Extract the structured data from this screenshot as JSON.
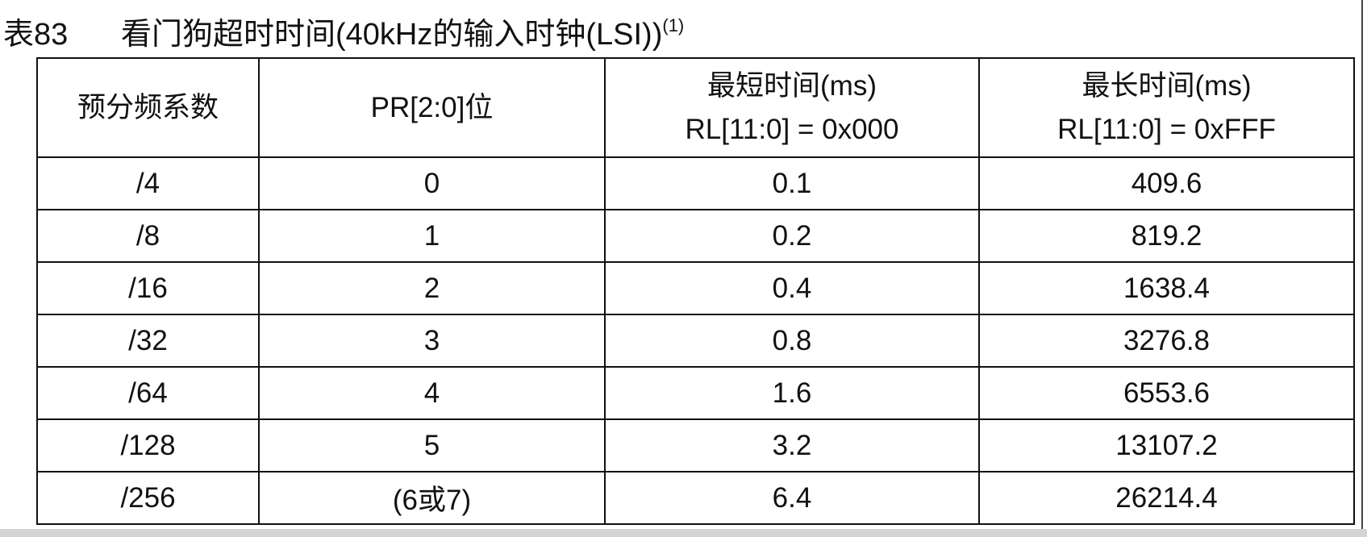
{
  "caption": {
    "number": "表83",
    "text": "看门狗超时时间(40kHz的输入时钟(LSI))",
    "footnote": "(1)"
  },
  "table": {
    "header": [
      [
        "预分频系数"
      ],
      [
        "PR[2:0]位"
      ],
      [
        "最短时间(ms)",
        "RL[11:0] = 0x000"
      ],
      [
        "最长时间(ms)",
        "RL[11:0] = 0xFFF"
      ]
    ],
    "rows": [
      [
        "/4",
        "0",
        "0.1",
        "409.6"
      ],
      [
        "/8",
        "1",
        "0.2",
        "819.2"
      ],
      [
        "/16",
        "2",
        "0.4",
        "1638.4"
      ],
      [
        "/32",
        "3",
        "0.8",
        "3276.8"
      ],
      [
        "/64",
        "4",
        "1.6",
        "6553.6"
      ],
      [
        "/128",
        "5",
        "3.2",
        "13107.2"
      ],
      [
        "/256",
        "(6或7)",
        "6.4",
        "26214.4"
      ]
    ]
  }
}
